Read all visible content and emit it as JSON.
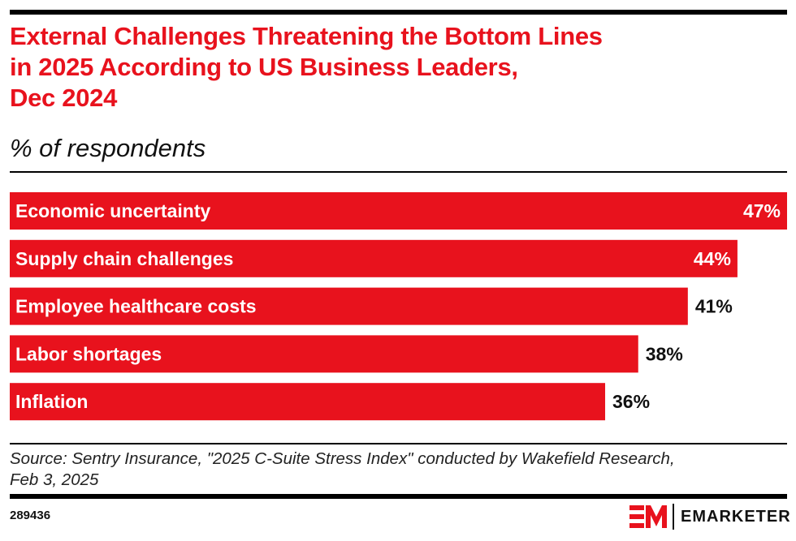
{
  "header": {
    "title_lines": [
      "External Challenges Threatening the Bottom Lines",
      "in 2025 According to US Business Leaders,",
      "Dec 2024"
    ],
    "subtitle": "% of respondents"
  },
  "chart_data": {
    "type": "bar",
    "orientation": "horizontal",
    "title": "External Challenges Threatening the Bottom Lines in 2025 According to US Business Leaders, Dec 2024",
    "subtitle": "% of respondents",
    "categories": [
      "Economic uncertainty",
      "Supply chain challenges",
      "Employee healthcare costs",
      "Labor shortages",
      "Inflation"
    ],
    "values": [
      47,
      44,
      41,
      38,
      36
    ],
    "value_labels": [
      "47%",
      "44%",
      "41%",
      "38%",
      "36%"
    ],
    "unit": "%",
    "xlabel": "",
    "ylabel": "",
    "xlim": [
      0,
      47
    ],
    "grid": false,
    "legend": "none",
    "bar_color": "#e8121d"
  },
  "footer": {
    "source_lines": [
      "Source: Sentry Insurance, \"2025 C-Suite Stress Index\" conducted by Wakefield Research,",
      "Feb 3, 2025"
    ],
    "chart_id": "289436",
    "brand": "EMARKETER",
    "brand_color": "#e8121d"
  }
}
